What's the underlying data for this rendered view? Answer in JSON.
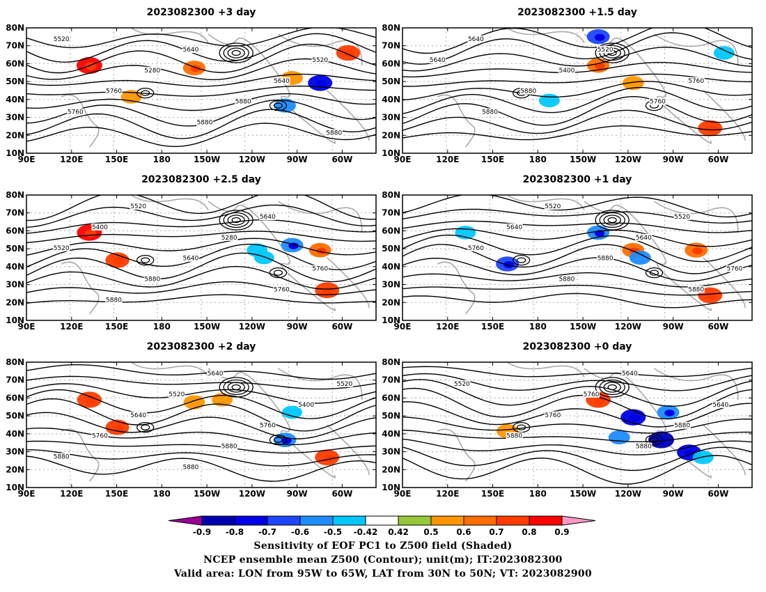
{
  "panels": [
    {
      "title": "2023082300 +3 day",
      "contour_labels": [
        "5520",
        "5640",
        "5520",
        "5280",
        "5640",
        "5760",
        "5880",
        "5760",
        "5880",
        "5880"
      ],
      "blobs": [
        [
          1,
          0.85
        ],
        [
          5,
          0.62
        ],
        [
          11,
          -0.55
        ],
        [
          14,
          -0.75
        ],
        [
          17,
          0.72
        ],
        [
          13,
          0.55
        ],
        [
          3,
          0.5
        ]
      ]
    },
    {
      "title": "2023082300 +1.5 day",
      "contour_labels": [
        "5640",
        "5520",
        "5640",
        "5400",
        "5760",
        "5880",
        "5760",
        "5880"
      ],
      "blobs": [
        [
          9,
          -0.65
        ],
        [
          10,
          0.55
        ],
        [
          16,
          0.75
        ],
        [
          6,
          0.6
        ],
        [
          4,
          -0.5
        ],
        [
          17,
          -0.5
        ]
      ]
    },
    {
      "title": "2023082300 +2.5 day",
      "contour_labels": [
        "5520",
        "5640",
        "5400",
        "5280",
        "5520",
        "5640",
        "5760",
        "5880",
        "5760",
        "5880"
      ],
      "blobs": [
        [
          2,
          0.72
        ],
        [
          1,
          0.8
        ],
        [
          10,
          -0.5
        ],
        [
          13,
          -0.6
        ],
        [
          15,
          0.75
        ],
        [
          14,
          0.6
        ],
        [
          8,
          -0.45
        ]
      ]
    },
    {
      "title": "2023082300 +1 day",
      "contour_labels": [
        "5520",
        "5520",
        "5640",
        "5640",
        "5760",
        "5880",
        "5760",
        "5880",
        "5880"
      ],
      "blobs": [
        [
          3,
          -0.65
        ],
        [
          6,
          -0.6
        ],
        [
          10,
          0.6
        ],
        [
          14,
          0.65
        ],
        [
          16,
          0.75
        ],
        [
          1,
          -0.5
        ],
        [
          8,
          -0.55
        ]
      ]
    },
    {
      "title": "2023082300 +2 day",
      "contour_labels": [
        "5640",
        "5520",
        "5520",
        "5400",
        "5640",
        "5760",
        "5760",
        "5880",
        "5880",
        "5880"
      ],
      "blobs": [
        [
          1,
          0.78
        ],
        [
          2,
          0.7
        ],
        [
          11,
          -0.6
        ],
        [
          15,
          0.75
        ],
        [
          5,
          0.55
        ],
        [
          6,
          0.5
        ],
        [
          13,
          -0.45
        ]
      ]
    },
    {
      "title": "2023082300 +0 day",
      "contour_labels": [
        "5640",
        "5520",
        "5760",
        "5640",
        "5760",
        "5880",
        "5880",
        "5880"
      ],
      "blobs": [
        [
          6,
          0.78
        ],
        [
          10,
          -0.8
        ],
        [
          11,
          -0.85
        ],
        [
          12,
          -0.75
        ],
        [
          13,
          -0.6
        ],
        [
          3,
          0.55
        ],
        [
          7,
          -0.55
        ],
        [
          15,
          -0.5
        ]
      ]
    }
  ],
  "lat_ticks": [
    "80N",
    "70N",
    "60N",
    "50N",
    "40N",
    "30N",
    "20N",
    "10N"
  ],
  "lon_ticks": [
    "90E",
    "120E",
    "150E",
    "180",
    "150W",
    "120W",
    "90W",
    "60W"
  ],
  "colorbar": {
    "tick_labels": [
      "-0.9",
      "-0.8",
      "-0.7",
      "-0.6",
      "-0.5",
      "-0.42",
      "0.42",
      "0.5",
      "0.6",
      "0.7",
      "0.8",
      "0.9"
    ],
    "colors": [
      "#9c0094",
      "#0000b0",
      "#0000e6",
      "#1e46ff",
      "#1e8cff",
      "#00c8ff",
      "#ffffff",
      "#96c83c",
      "#ff9600",
      "#ff6e00",
      "#ff3c00",
      "#ff0000",
      "#ff9ac8"
    ]
  },
  "captions": {
    "line1": "Sensitivity of EOF PC1 to Z500 field (Shaded)",
    "line2": "NCEP ensemble mean Z500 (Contour); unit(m); IT:2023082300",
    "line3": "Valid area: LON from 95W to 65W, LAT from 30N to 50N; VT: 2023082900"
  }
}
